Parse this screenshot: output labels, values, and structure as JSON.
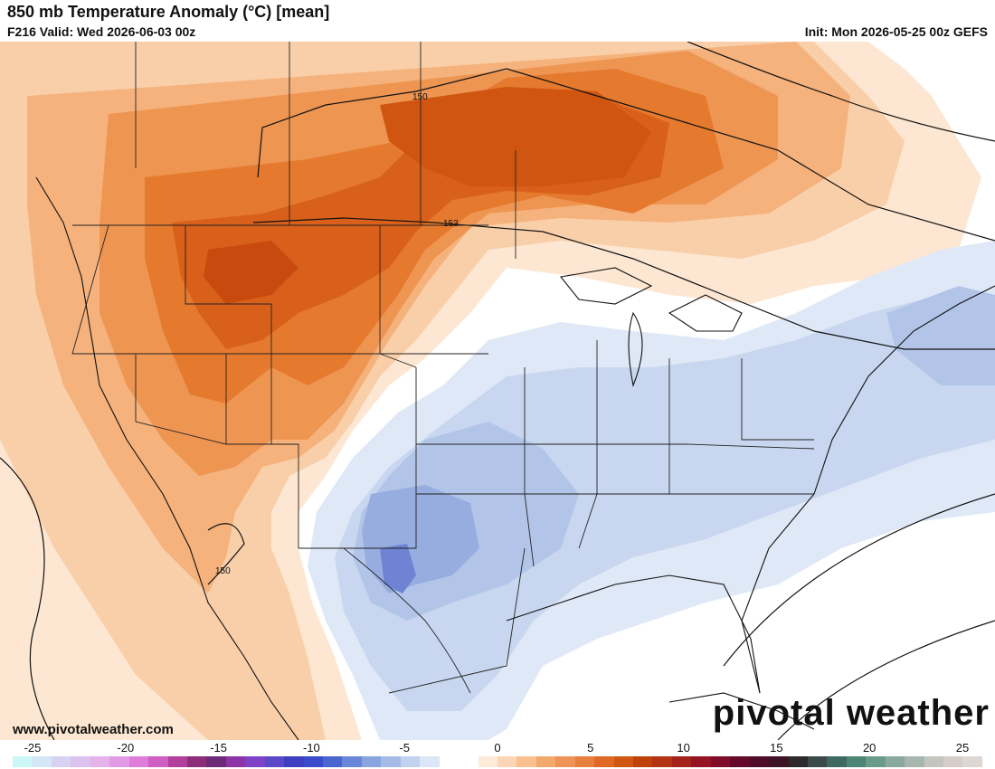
{
  "header": {
    "title": "850 mb Temperature Anomaly (°C) [mean]",
    "valid": "F216 Valid: Wed 2026-06-03 00z",
    "init": "Init: Mon 2026-05-25 00z GEFS"
  },
  "footer": {
    "website": "www.pivotalweather.com",
    "brand": "pivotal weather"
  },
  "contours": [
    "150",
    "153",
    "150"
  ],
  "colorbar": {
    "ticks": [
      "-25",
      "-20",
      "-15",
      "-10",
      "-5",
      "0",
      "5",
      "10",
      "15",
      "20",
      "25"
    ],
    "colors": [
      "#cdf7f7",
      "#d5e6f7",
      "#d8d2f2",
      "#dcc2ee",
      "#e3b3ea",
      "#e19ae6",
      "#de7ed8",
      "#cf5fc3",
      "#b23f9c",
      "#8e2e78",
      "#6c2a78",
      "#8c34a6",
      "#7e42c8",
      "#5a4ac8",
      "#3d3fc0",
      "#3a4bcc",
      "#4c66d0",
      "#6a86d8",
      "#8aa4de",
      "#a6bce6",
      "#c2d2ee",
      "#dbe6f6",
      "#ffffff",
      "#ffffff",
      "#fdebd9",
      "#fbd6b6",
      "#f8c08f",
      "#f3a86e",
      "#ee9458",
      "#e77f3f",
      "#de6a26",
      "#cf5712",
      "#bf4308",
      "#b23412",
      "#a4221c",
      "#951424",
      "#7e0c2a",
      "#660a2c",
      "#500d2a",
      "#3c1426",
      "#2e2a2c",
      "#3a4a48",
      "#3e6a62",
      "#4e8676",
      "#6a9a8a",
      "#8aaa9e",
      "#a8b6b0",
      "#c4c4c0",
      "#d6ccc8",
      "#ded6d4"
    ]
  }
}
